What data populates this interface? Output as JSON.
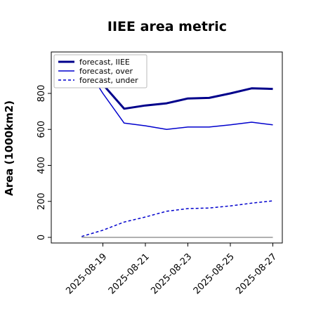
{
  "chart_data": {
    "type": "line",
    "title": "IIEE area metric",
    "xlabel": "",
    "ylabel": "Area (1000km2)",
    "ylim": [
      -30,
      1040
    ],
    "yticks": [
      0,
      200,
      400,
      600,
      800
    ],
    "x": [
      "2025-08-18",
      "2025-08-19",
      "2025-08-20",
      "2025-08-21",
      "2025-08-22",
      "2025-08-23",
      "2025-08-24",
      "2025-08-25",
      "2025-08-26",
      "2025-08-27"
    ],
    "xticks": [
      "2025-08-19",
      "2025-08-21",
      "2025-08-23",
      "2025-08-25",
      "2025-08-27"
    ],
    "highlight_tick": "2025-08-19",
    "highlight_color": "#228B22",
    "reference_line": {
      "value": 0,
      "color": "#808080"
    },
    "grid": false,
    "legend_position": "top-left",
    "series": [
      {
        "name": "forecast, IIEE",
        "color": "#00008B",
        "style": "solid-thick",
        "values": [
          990,
          850,
          715,
          733,
          745,
          772,
          775,
          800,
          828,
          825
        ]
      },
      {
        "name": "forecast, over",
        "color": "#0000CD",
        "style": "solid",
        "values": [
          985,
          800,
          635,
          620,
          600,
          613,
          613,
          625,
          640,
          625
        ]
      },
      {
        "name": "forecast, under",
        "color": "#0000CD",
        "style": "dashed",
        "values": [
          5,
          40,
          85,
          113,
          145,
          160,
          163,
          175,
          190,
          203
        ]
      }
    ]
  }
}
